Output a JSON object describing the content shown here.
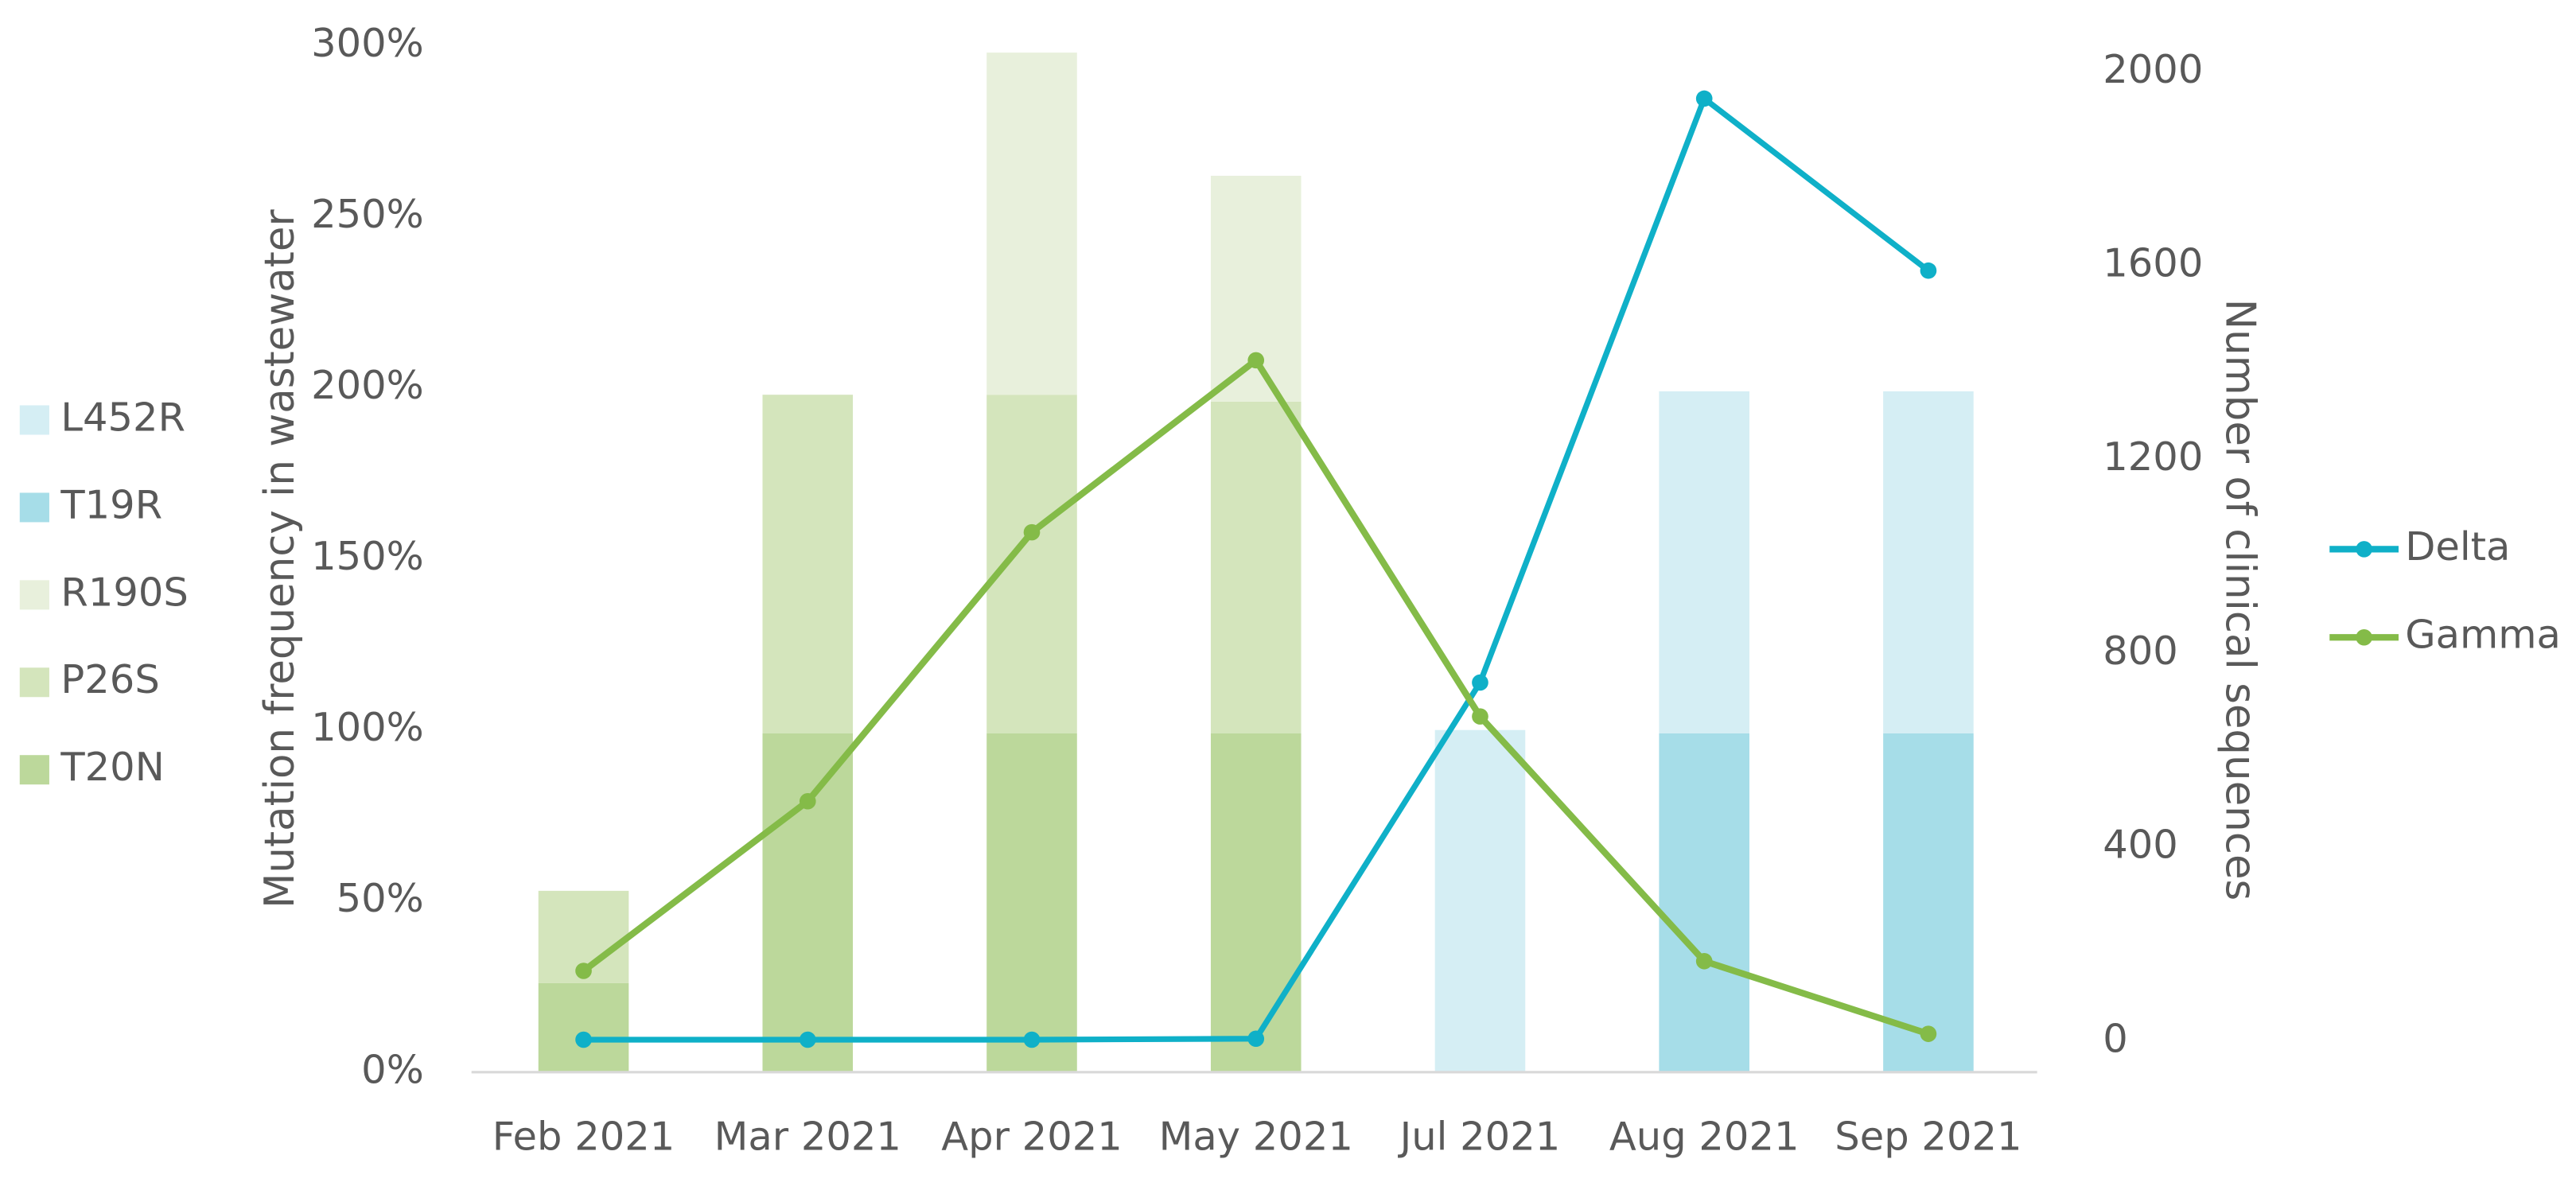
{
  "chart_data": {
    "type": "bar",
    "categories": [
      "Feb 2021",
      "Mar 2021",
      "Apr 2021",
      "May 2021",
      "Jul 2021",
      "Aug 2021",
      "Sep 2021"
    ],
    "y_label": "Mutation frequency in wastewater",
    "y2_label": "Number of clinical sequences",
    "ylim": [
      0,
      300
    ],
    "yticks": [
      {
        "value": 0,
        "label": "0%"
      },
      {
        "value": 50,
        "label": "50%"
      },
      {
        "value": 100,
        "label": "100%"
      },
      {
        "value": 150,
        "label": "150%"
      },
      {
        "value": 200,
        "label": "200%"
      },
      {
        "value": 250,
        "label": "250%"
      },
      {
        "value": 300,
        "label": "300%"
      }
    ],
    "y2lim": [
      -64,
      2054
    ],
    "y2ticks": [
      0,
      400,
      800,
      1200,
      1600,
      2000
    ],
    "series": [
      {
        "name": "T20N",
        "type": "bar",
        "color": "#bcd89b",
        "values": [
          26,
          99,
          99,
          99,
          null,
          null,
          null
        ]
      },
      {
        "name": "P26S",
        "type": "bar",
        "color": "#d4e5bc",
        "values": [
          27,
          99,
          99,
          97,
          null,
          null,
          null
        ]
      },
      {
        "name": "R190S",
        "type": "bar",
        "color": "#e8f0dc",
        "values": [
          null,
          null,
          100,
          66,
          null,
          null,
          null
        ]
      },
      {
        "name": "T19R",
        "type": "bar",
        "color": "#a6dde8",
        "values": [
          null,
          null,
          null,
          null,
          null,
          99,
          99
        ]
      },
      {
        "name": "L452R",
        "type": "bar",
        "color": "#d5eef4",
        "values": [
          null,
          null,
          null,
          null,
          100,
          100,
          100
        ]
      },
      {
        "name": "Delta",
        "type": "line",
        "axis": "y2",
        "color": "#0fb0c8",
        "values": [
          3,
          3,
          3,
          5,
          740,
          1945,
          1590
        ]
      },
      {
        "name": "Gamma",
        "type": "line",
        "axis": "y2",
        "color": "#84bb48",
        "values": [
          145,
          495,
          1050,
          1405,
          670,
          165,
          15
        ]
      }
    ]
  }
}
